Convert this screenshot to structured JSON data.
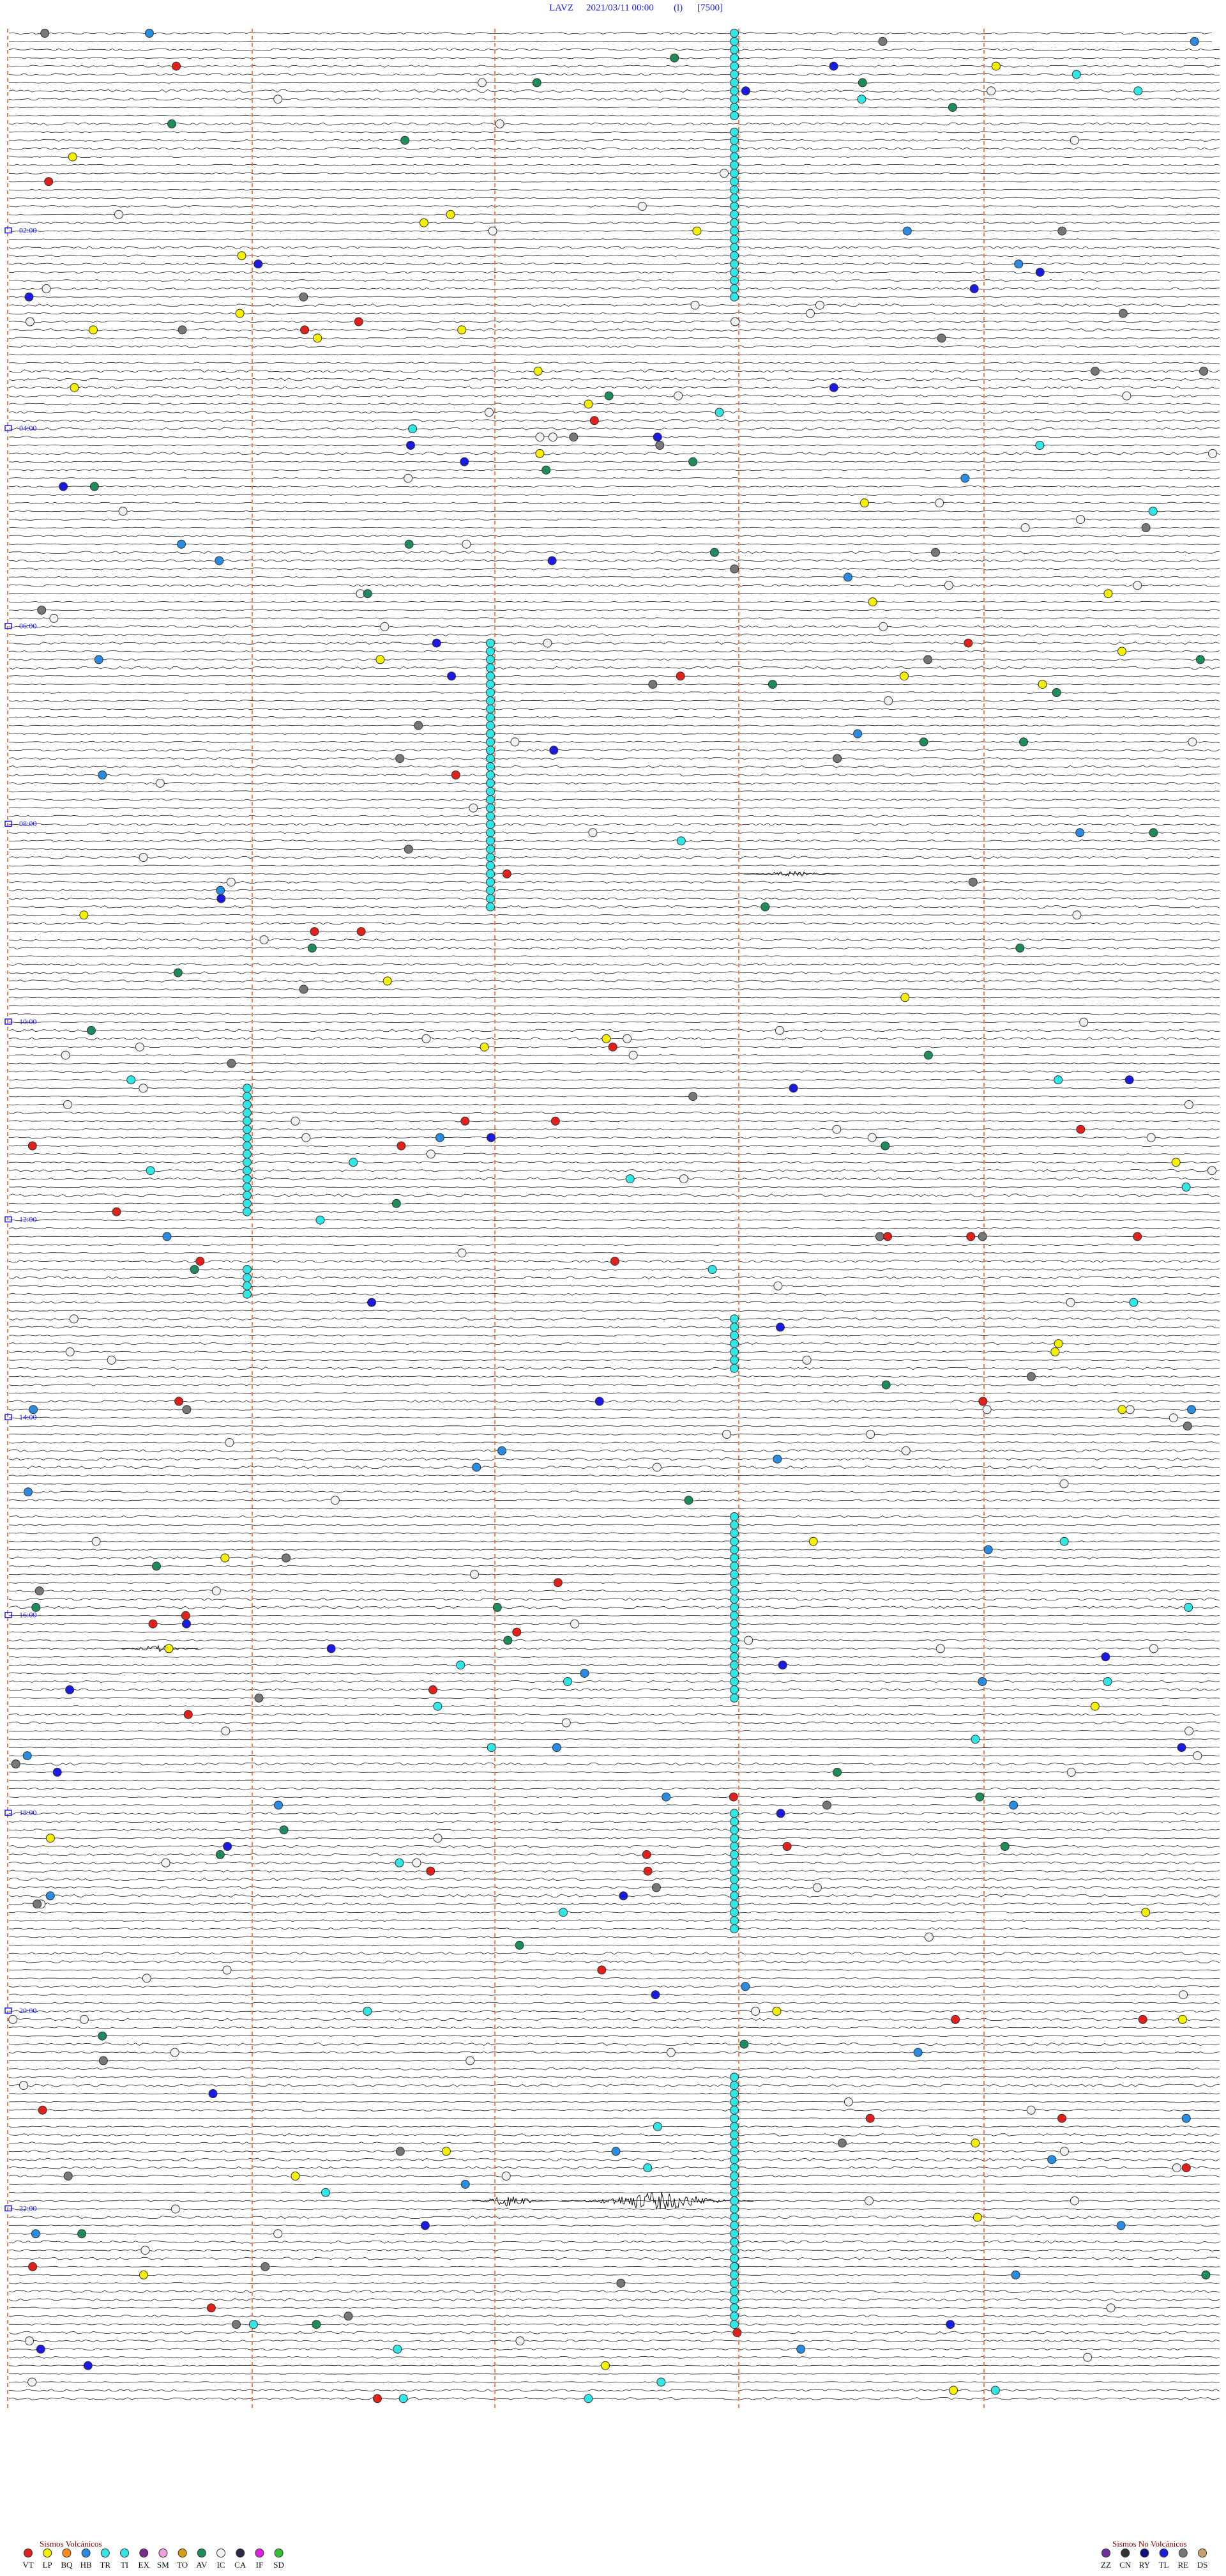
{
  "header": {
    "station": "LAVZ",
    "datetime": "2021/03/11 00:00",
    "channel": "(l)",
    "scale": "[7500]"
  },
  "hour_labels": [
    "02:00",
    "04:00",
    "06:00",
    "08:00",
    "10:00",
    "12:00",
    "14:00",
    "16:00",
    "18:00",
    "20:00",
    "22:00"
  ],
  "legend_volcanic": {
    "title": "Sismos Volcánicos",
    "items": [
      {
        "code": "VT",
        "color": "#e0201a"
      },
      {
        "code": "LP",
        "color": "#f4f000"
      },
      {
        "code": "BQ",
        "color": "#ff8c1a"
      },
      {
        "code": "HB",
        "color": "#2a8ce0"
      },
      {
        "code": "TR",
        "color": "#33e6e6"
      },
      {
        "code": "TI",
        "color": "#33e6e6"
      },
      {
        "code": "EX",
        "color": "#7a2a8c"
      },
      {
        "code": "SM",
        "color": "#f0a0e0"
      },
      {
        "code": "TO",
        "color": "#d4a017"
      },
      {
        "code": "AV",
        "color": "#1e8c5a"
      },
      {
        "code": "IC",
        "color": "#f2f2f2"
      },
      {
        "code": "CA",
        "color": "#2a2a4a"
      },
      {
        "code": "IF",
        "color": "#e020e0"
      },
      {
        "code": "SD",
        "color": "#30c030"
      }
    ]
  },
  "legend_nonvolcanic": {
    "title": "Sismos No Volcánicos",
    "items": [
      {
        "code": "ZZ",
        "color": "#7030a0"
      },
      {
        "code": "CN",
        "color": "#333333"
      },
      {
        "code": "RY",
        "color": "#101080"
      },
      {
        "code": "TL",
        "color": "#1a1ae0"
      },
      {
        "code": "RE",
        "color": "#777777"
      },
      {
        "code": "DS",
        "color": "#c8a070"
      }
    ]
  }
}
